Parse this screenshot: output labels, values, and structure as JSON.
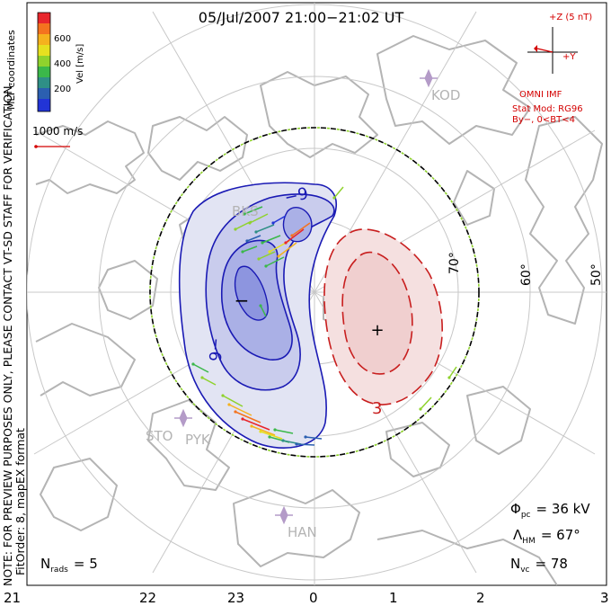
{
  "header": {
    "title": "05/Jul/2007 21:00−21:02 UT"
  },
  "colorbar": {
    "tick_labels": [
      "600",
      "400",
      "200"
    ],
    "axis_label": "Vel [m/s]",
    "coordinates_label": "MLT coordinates",
    "colors_top_to_bottom": [
      "#e8262c",
      "#f4731f",
      "#f5b21e",
      "#e6e020",
      "#8fd22d",
      "#3bb84a",
      "#2f8f86",
      "#2b5fb0",
      "#2234d6"
    ]
  },
  "scale_vector": {
    "label": "1000 m/s",
    "color": "#d40000"
  },
  "imf": {
    "label": "+Z (5 nT)",
    "y_label": "+Y",
    "source": "OMNI IMF",
    "stat_mod": "Stat Mod: RG96",
    "condition": "By−, 0<BT<4",
    "color": "#d40000"
  },
  "watermark": {
    "line1": "NOTE: FOR PREVIEW PURPOSES ONLY, PLEASE CONTACT VT-SD STAFF FOR VERIFICATION.",
    "line2": "FitOrder: 8, mapEX format"
  },
  "stations": [
    "KOD",
    "BKS",
    "STO",
    "PYK",
    "HAN"
  ],
  "latitude_labels": [
    "70°",
    "60°",
    "50°"
  ],
  "mlt_labels": [
    "21",
    "22",
    "23",
    "0",
    "1",
    "2",
    "3"
  ],
  "potential": {
    "negative_label": "−9",
    "negative_label2": "−6",
    "positive_label": "3",
    "min_marker": "−",
    "max_marker": "+",
    "negative_color": "#1a1ab4",
    "positive_color": "#c81e1e"
  },
  "stats": {
    "phi_pc_symbol": "Φ",
    "phi_pc_sub": "pc",
    "phi_pc_value": "= 36 kV",
    "lambda_hm_symbol": "Λ",
    "lambda_hm_sub": "HM",
    "lambda_hm_value": "= 67°",
    "nvc_symbol": "N",
    "nvc_sub": "vc",
    "nvc_value": "= 78",
    "nrads_symbol": "N",
    "nrads_sub": "rads",
    "nrads_value": "= 5"
  }
}
